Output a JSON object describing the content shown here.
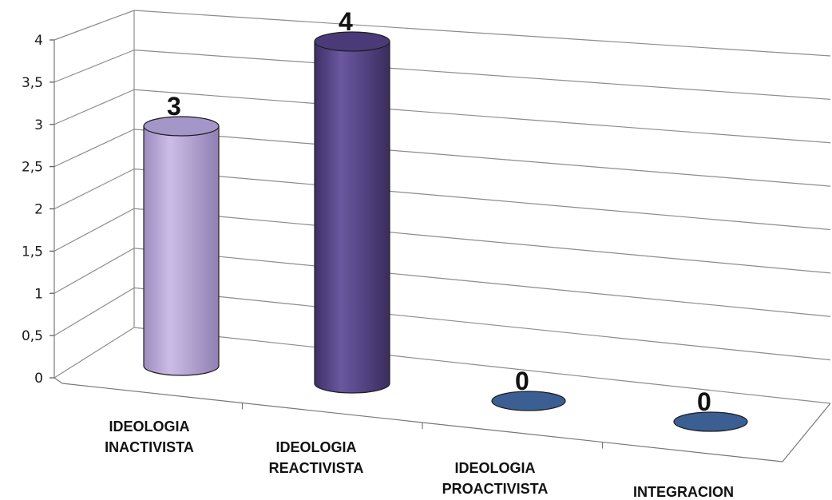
{
  "chart_data": {
    "type": "bar",
    "categories": [
      [
        "IDEOLOGIA",
        "INACTIVISTA"
      ],
      [
        "IDEOLOGIA",
        "REACTIVISTA"
      ],
      [
        "IDEOLOGIA",
        "PROACTIVISTA"
      ],
      [
        "INTEGRACION"
      ]
    ],
    "values": [
      3,
      4,
      0,
      0
    ],
    "data_labels": [
      "3",
      "4",
      "0",
      "0"
    ],
    "ylim": [
      0,
      4
    ],
    "yticks": [
      "0",
      "0,5",
      "1",
      "1,5",
      "2",
      "2,5",
      "3",
      "3,5",
      "4"
    ],
    "grid": true,
    "style": "3d-cylinder",
    "colors": {
      "bar_colors": [
        "#b9a9d6",
        "#5e4b8b",
        "#3b5f93",
        "#3b5f93"
      ],
      "gridline": "#8c8c8c"
    }
  }
}
